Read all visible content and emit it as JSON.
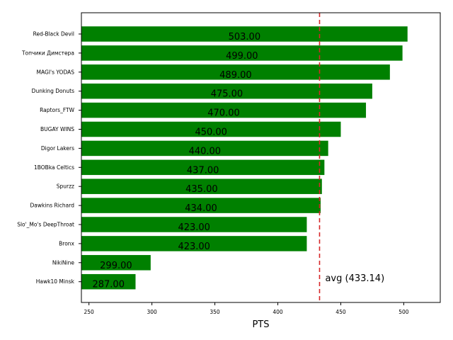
{
  "chart_data": {
    "type": "bar",
    "orientation": "horizontal",
    "categories": [
      "Red-Black Devil",
      "Топчики Димстера",
      "MAGI's YODAS",
      "Dunking Donuts",
      "Raptors_FTW",
      "BUGAY WINS",
      "Digor Lakers",
      "1BOBka Celtics",
      "Spurzz",
      "Dawkins Richard",
      "Slo'_Mo's DeepThroat",
      "Bronx",
      "NikiNine",
      "Hawk10 Minsk"
    ],
    "values": [
      503,
      499,
      489,
      475,
      470,
      450,
      440,
      437,
      435,
      434,
      423,
      423,
      299,
      287
    ],
    "value_labels": [
      "503.00",
      "499.00",
      "489.00",
      "475.00",
      "470.00",
      "450.00",
      "440.00",
      "437.00",
      "435.00",
      "434.00",
      "423.00",
      "423.00",
      "299.00",
      "287.00"
    ],
    "xlabel": "PTS",
    "xlim": [
      244,
      529
    ],
    "xticks": [
      250,
      300,
      350,
      400,
      450,
      500
    ],
    "average": 433.14,
    "average_label": "avg (433.14)",
    "bar_color": "#008000",
    "avg_line_color": "#d62728",
    "grid": false
  }
}
